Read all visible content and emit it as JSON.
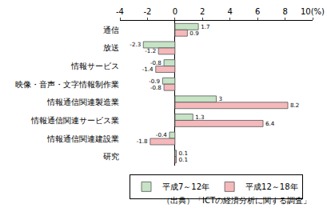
{
  "chart_data": {
    "type": "bar",
    "orientation": "horizontal",
    "categories": [
      "通信",
      "放送",
      "情報サービス",
      "映像・音声・文字情報制作業",
      "情報通信関連製造業",
      "情報通信関連サービス業",
      "情報通信関連建設業",
      "研究"
    ],
    "series": [
      {
        "name": "平成7～12年",
        "color": "#c6e3c6",
        "values": [
          1.7,
          -2.3,
          -0.8,
          -0.9,
          3.0,
          1.3,
          -0.4,
          0.1
        ]
      },
      {
        "name": "平成12～18年",
        "color": "#f5b9bb",
        "values": [
          0.9,
          -1.2,
          -1.4,
          -0.8,
          8.2,
          6.4,
          -1.8,
          0.1
        ]
      }
    ],
    "xlim": [
      -4,
      10
    ],
    "xticks": [
      -4,
      -2,
      0,
      2,
      4,
      6,
      8,
      {
        "value": 10,
        "label": "10(%)"
      }
    ],
    "grid": false,
    "legend": "bottom",
    "data_labels": true,
    "source": "（出典）「ICTの経済分析に関する調査」"
  }
}
